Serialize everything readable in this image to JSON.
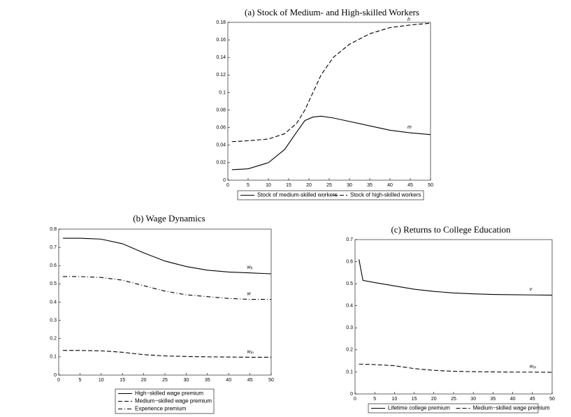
{
  "chart_data": [
    {
      "type": "line",
      "title": "(a) Stock of Medium- and High-skilled Workers",
      "x": [
        1,
        5,
        10,
        14,
        17,
        19,
        21,
        23,
        26,
        30,
        35,
        40,
        45,
        50
      ],
      "series": [
        {
          "name": "Stock of medium-skilled workers",
          "label": "m",
          "color": "#000",
          "style": "solid",
          "values": [
            0.012,
            0.013,
            0.02,
            0.035,
            0.055,
            0.068,
            0.072,
            0.073,
            0.071,
            0.067,
            0.062,
            0.057,
            0.054,
            0.052
          ]
        },
        {
          "name": "Stock of high-skilled workers",
          "label": "h",
          "color": "#000",
          "style": "dashed",
          "values": [
            0.044,
            0.045,
            0.047,
            0.053,
            0.065,
            0.08,
            0.1,
            0.12,
            0.14,
            0.155,
            0.167,
            0.174,
            0.177,
            0.179
          ]
        }
      ],
      "xlim": [
        0,
        50
      ],
      "xticks": [
        0,
        5,
        10,
        15,
        20,
        25,
        30,
        35,
        40,
        45,
        50
      ],
      "ylim": [
        0,
        0.18
      ],
      "yticks": [
        0,
        0.02,
        0.04,
        0.06,
        0.08,
        0.1,
        0.12,
        0.14,
        0.16,
        0.18
      ],
      "legend": "bottom"
    },
    {
      "type": "line",
      "title": "(b) Wage Dynamics",
      "x": [
        1,
        5,
        10,
        15,
        20,
        25,
        30,
        35,
        40,
        45,
        50
      ],
      "series": [
        {
          "name": "High−skilled wage premium",
          "label": "w",
          "sub": "h",
          "color": "#000",
          "style": "solid",
          "values": [
            0.75,
            0.75,
            0.745,
            0.72,
            0.67,
            0.625,
            0.595,
            0.575,
            0.565,
            0.56,
            0.555
          ]
        },
        {
          "name": "Medium−skilled wage premium",
          "label": "w",
          "sub": "m",
          "color": "#000",
          "style": "dashed",
          "values": [
            0.135,
            0.135,
            0.133,
            0.125,
            0.112,
            0.105,
            0.102,
            0.1,
            0.099,
            0.098,
            0.098
          ]
        },
        {
          "name": "Experience premium",
          "label": "w",
          "color": "#000",
          "style": "dashdot",
          "values": [
            0.54,
            0.54,
            0.535,
            0.52,
            0.49,
            0.46,
            0.44,
            0.43,
            0.42,
            0.415,
            0.415
          ]
        }
      ],
      "xlim": [
        0,
        50
      ],
      "xticks": [
        0,
        5,
        10,
        15,
        20,
        25,
        30,
        35,
        40,
        45,
        50
      ],
      "ylim": [
        0,
        0.8
      ],
      "yticks": [
        0,
        0.1,
        0.2,
        0.3,
        0.4,
        0.5,
        0.6,
        0.7,
        0.8
      ],
      "legend": "bottom"
    },
    {
      "type": "line",
      "title": "(c) Returns to College Education",
      "x": [
        1,
        2,
        5,
        10,
        15,
        20,
        25,
        30,
        35,
        40,
        45,
        50
      ],
      "series": [
        {
          "name": "Lifetime college premium",
          "label": "v",
          "color": "#000",
          "style": "solid",
          "values": [
            0.61,
            0.515,
            0.505,
            0.49,
            0.475,
            0.465,
            0.458,
            0.454,
            0.451,
            0.45,
            0.449,
            0.448
          ]
        },
        {
          "name": "Medium−skilled wage premium",
          "label": "w",
          "sub": "m",
          "color": "#000",
          "style": "dashed",
          "values": [
            0.135,
            0.135,
            0.133,
            0.128,
            0.115,
            0.107,
            0.103,
            0.101,
            0.1,
            0.099,
            0.099,
            0.098
          ]
        }
      ],
      "xlim": [
        0,
        50
      ],
      "xticks": [
        0,
        5,
        10,
        15,
        20,
        25,
        30,
        35,
        40,
        45,
        50
      ],
      "ylim": [
        0,
        0.7
      ],
      "yticks": [
        0,
        0.1,
        0.2,
        0.3,
        0.4,
        0.5,
        0.6,
        0.7
      ],
      "legend": "bottom"
    }
  ]
}
